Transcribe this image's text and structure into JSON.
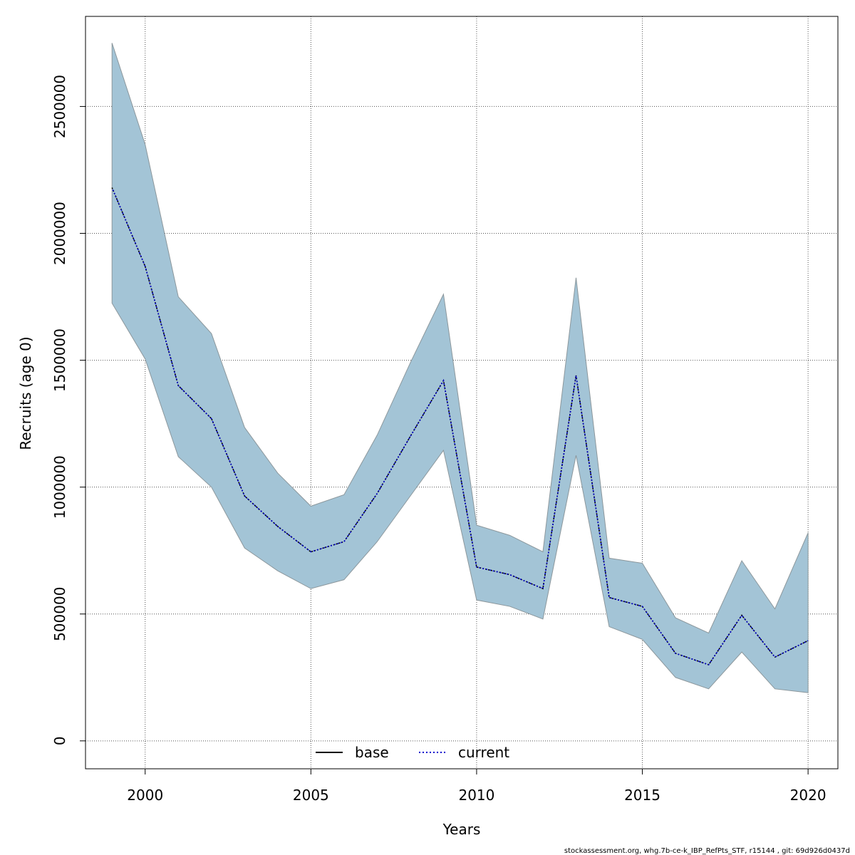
{
  "chart_data": {
    "type": "line",
    "title": "",
    "xlabel": "Years",
    "ylabel": "Recruits (age 0)",
    "xlim": [
      1998.2,
      2020.9
    ],
    "ylim": [
      -110000,
      2855000
    ],
    "x_ticks": [
      2000,
      2005,
      2010,
      2015,
      2020
    ],
    "y_ticks": [
      0,
      500000,
      1000000,
      1500000,
      2000000,
      2500000
    ],
    "grid": true,
    "x": [
      1999,
      2000,
      2001,
      2002,
      2003,
      2004,
      2005,
      2006,
      2007,
      2008,
      2009,
      2010,
      2011,
      2012,
      2013,
      2014,
      2015,
      2016,
      2017,
      2018,
      2019,
      2020
    ],
    "series": [
      {
        "name": "base",
        "style": "solid",
        "color": "#000000",
        "values": [
          2180000,
          1870000,
          1400000,
          1270000,
          965000,
          845000,
          745000,
          785000,
          975000,
          1200000,
          1420000,
          685000,
          655000,
          600000,
          1440000,
          565000,
          530000,
          345000,
          300000,
          495000,
          330000,
          395000
        ]
      },
      {
        "name": "current",
        "style": "dotted",
        "color": "#0000cd",
        "values": [
          2180000,
          1870000,
          1400000,
          1270000,
          965000,
          845000,
          745000,
          785000,
          975000,
          1200000,
          1420000,
          685000,
          655000,
          600000,
          1440000,
          565000,
          530000,
          345000,
          300000,
          495000,
          330000,
          395000
        ]
      }
    ],
    "confidence_band": {
      "upper": [
        2750000,
        2350000,
        1750000,
        1605000,
        1235000,
        1055000,
        925000,
        970000,
        1205000,
        1490000,
        1760000,
        850000,
        810000,
        745000,
        1825000,
        720000,
        700000,
        485000,
        425000,
        710000,
        520000,
        820000
      ],
      "lower": [
        1725000,
        1505000,
        1120000,
        1000000,
        760000,
        670000,
        600000,
        635000,
        785000,
        965000,
        1145000,
        555000,
        530000,
        480000,
        1125000,
        450000,
        400000,
        250000,
        205000,
        350000,
        205000,
        190000
      ],
      "fill": "#a3c4d6",
      "stroke": "#8c979c"
    },
    "legend": {
      "position": "bottom-center",
      "entries": [
        "base",
        "current"
      ]
    },
    "footer_text": "stockassessment.org, whg.7b-ce-k_IBP_RefPts_STF, r15144 , git: 69d926d0437d"
  }
}
